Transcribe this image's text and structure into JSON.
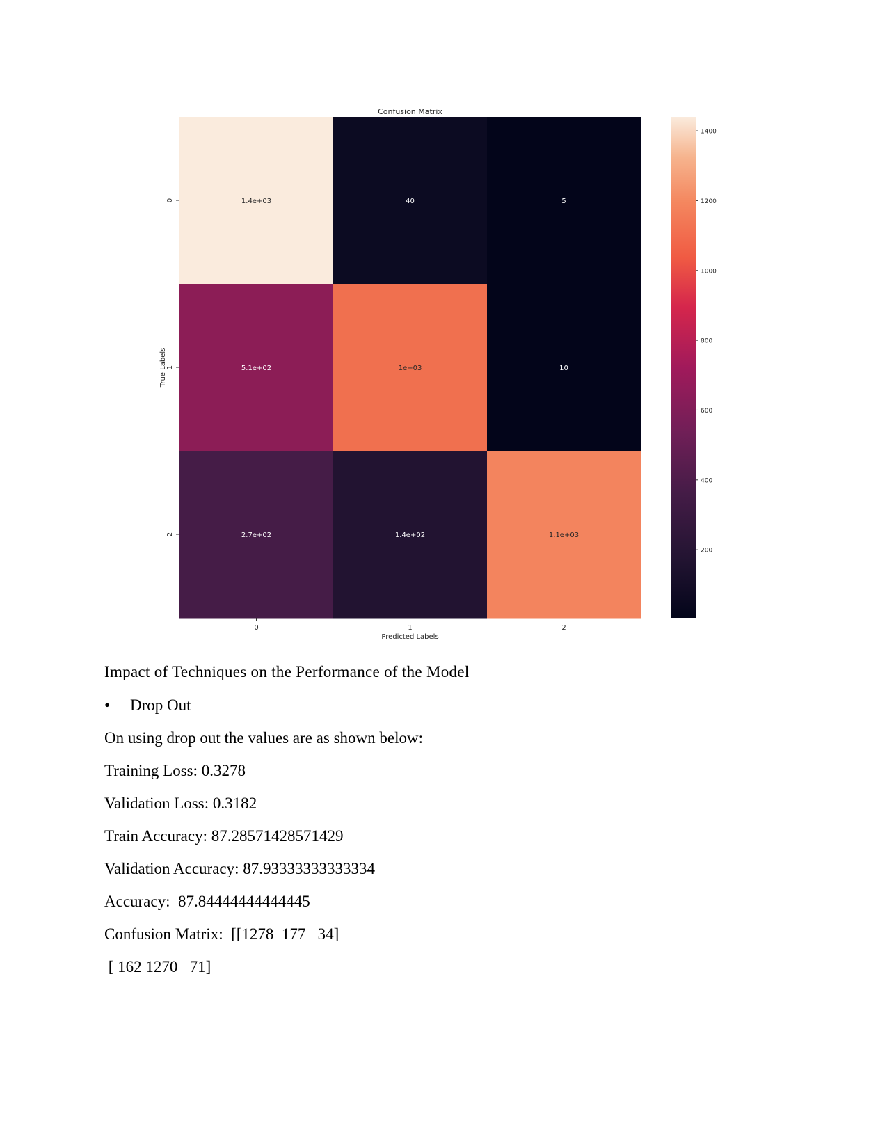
{
  "chart_data": {
    "type": "heatmap",
    "title": "Confusion Matrix",
    "xlabel": "Predicted Labels",
    "ylabel": "True Labels",
    "x_categories": [
      "0",
      "1",
      "2"
    ],
    "y_categories": [
      "0",
      "1",
      "2"
    ],
    "values": [
      [
        1440,
        40,
        5
      ],
      [
        510,
        1000,
        10
      ],
      [
        270,
        140,
        1100
      ]
    ],
    "annotations": [
      [
        "1.4e+03",
        "40",
        "5"
      ],
      [
        "5.1e+02",
        "1e+03",
        "10"
      ],
      [
        "2.7e+02",
        "1.4e+02",
        "1.1e+03"
      ]
    ],
    "colorbar": {
      "range": [
        5,
        1440
      ],
      "ticks": [
        1400,
        1200,
        1000,
        800,
        600,
        400,
        200
      ],
      "colormap": "rocket"
    },
    "colors": {
      "cell_0_0": "#faebdd",
      "cell_0_1": "#0c0b22",
      "cell_0_2": "#03051a",
      "cell_1_0": "#8c1d56",
      "cell_1_1": "#f0704f",
      "cell_1_2": "#03051a",
      "cell_2_0": "#451c47",
      "cell_2_1": "#221331",
      "cell_2_2": "#f3845e"
    }
  },
  "doc": {
    "heading": "Impact of Techniques on the Performance of the Model",
    "bullet": "Drop Out",
    "intro": "On using drop out the values are as shown below:",
    "training_loss": "Training Loss: 0.3278",
    "validation_loss": "Validation Loss: 0.3182",
    "train_accuracy": "Train Accuracy: 87.28571428571429",
    "validation_accuracy": "Validation Accuracy: 87.93333333333334",
    "accuracy": "Accuracy:  87.84444444444445",
    "confusion_line1": "Confusion Matrix:  [[1278  177   34]",
    "confusion_line2": " [ 162 1270   71]"
  }
}
